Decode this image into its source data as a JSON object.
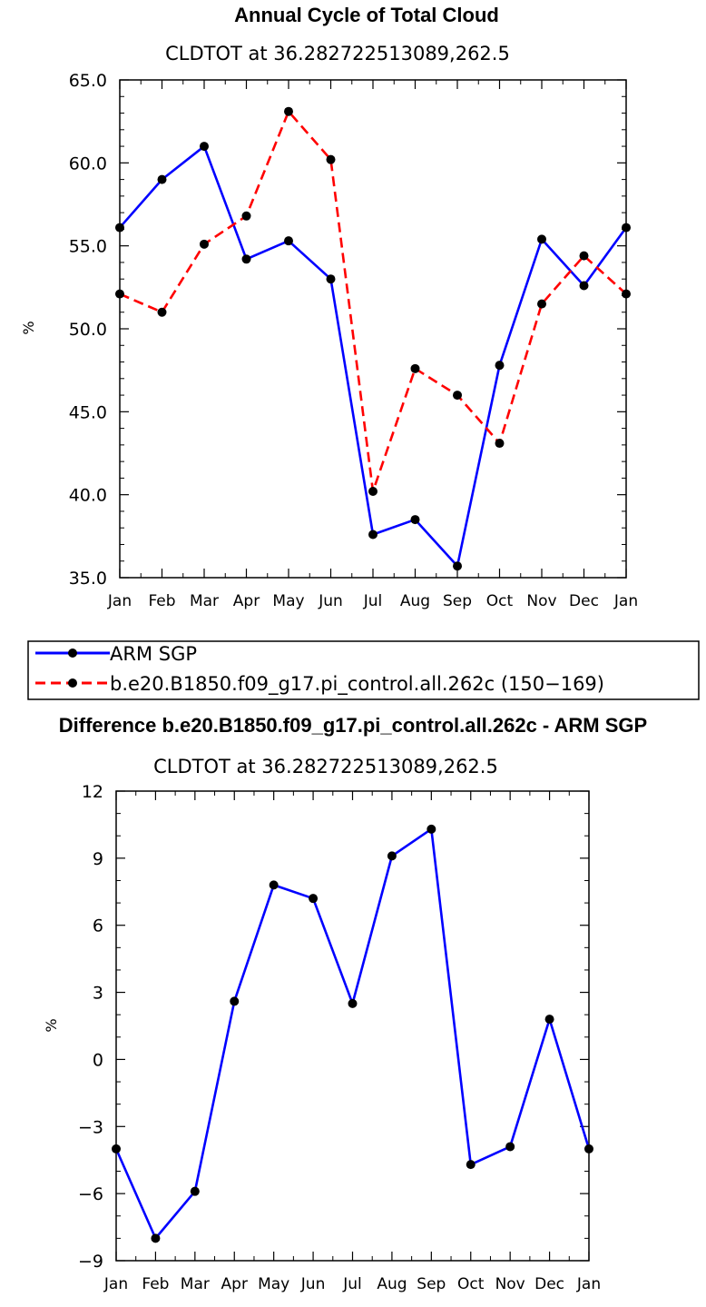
{
  "chart_data": [
    {
      "type": "line",
      "title": "Annual Cycle of Total Cloud",
      "subtitle": "CLDTOT at 36.282722513089,262.5",
      "xlabel": "",
      "ylabel": "%",
      "categories": [
        "Jan",
        "Feb",
        "Mar",
        "Apr",
        "May",
        "Jun",
        "Jul",
        "Aug",
        "Sep",
        "Oct",
        "Nov",
        "Dec",
        "Jan"
      ],
      "ylim": [
        35.0,
        65.0
      ],
      "yticks": [
        "35.0",
        "40.0",
        "45.0",
        "50.0",
        "55.0",
        "60.0",
        "65.0"
      ],
      "series": [
        {
          "name": "ARM SGP",
          "color": "#0000ff",
          "dash": false,
          "values": [
            56.1,
            59.0,
            61.0,
            54.2,
            55.3,
            53.0,
            37.6,
            38.5,
            35.7,
            47.8,
            55.4,
            52.6,
            56.1
          ]
        },
        {
          "name": "b.e20.B1850.f09_g17.pi_control.all.262c (150−169)",
          "color": "#ff0000",
          "dash": true,
          "values": [
            52.1,
            51.0,
            55.1,
            56.8,
            63.1,
            60.2,
            40.2,
            47.6,
            46.0,
            43.1,
            51.5,
            54.4,
            52.1
          ]
        }
      ],
      "legend_position": "bottom"
    },
    {
      "type": "line",
      "title": "Difference b.e20.B1850.f09_g17.pi_control.all.262c - ARM SGP",
      "subtitle": "CLDTOT at 36.282722513089,262.5",
      "xlabel": "",
      "ylabel": "%",
      "categories": [
        "Jan",
        "Feb",
        "Mar",
        "Apr",
        "May",
        "Jun",
        "Jul",
        "Aug",
        "Sep",
        "Oct",
        "Nov",
        "Dec",
        "Jan"
      ],
      "ylim": [
        -9,
        12
      ],
      "yticks": [
        "−9",
        "−6",
        "−3",
        "0",
        "3",
        "6",
        "9",
        "12"
      ],
      "series": [
        {
          "color": "#0000ff",
          "dash": false,
          "values": [
            -4.0,
            -8.0,
            -5.9,
            2.6,
            7.8,
            7.2,
            2.5,
            9.1,
            10.3,
            -4.7,
            -3.9,
            1.8,
            -4.0
          ]
        }
      ]
    }
  ]
}
